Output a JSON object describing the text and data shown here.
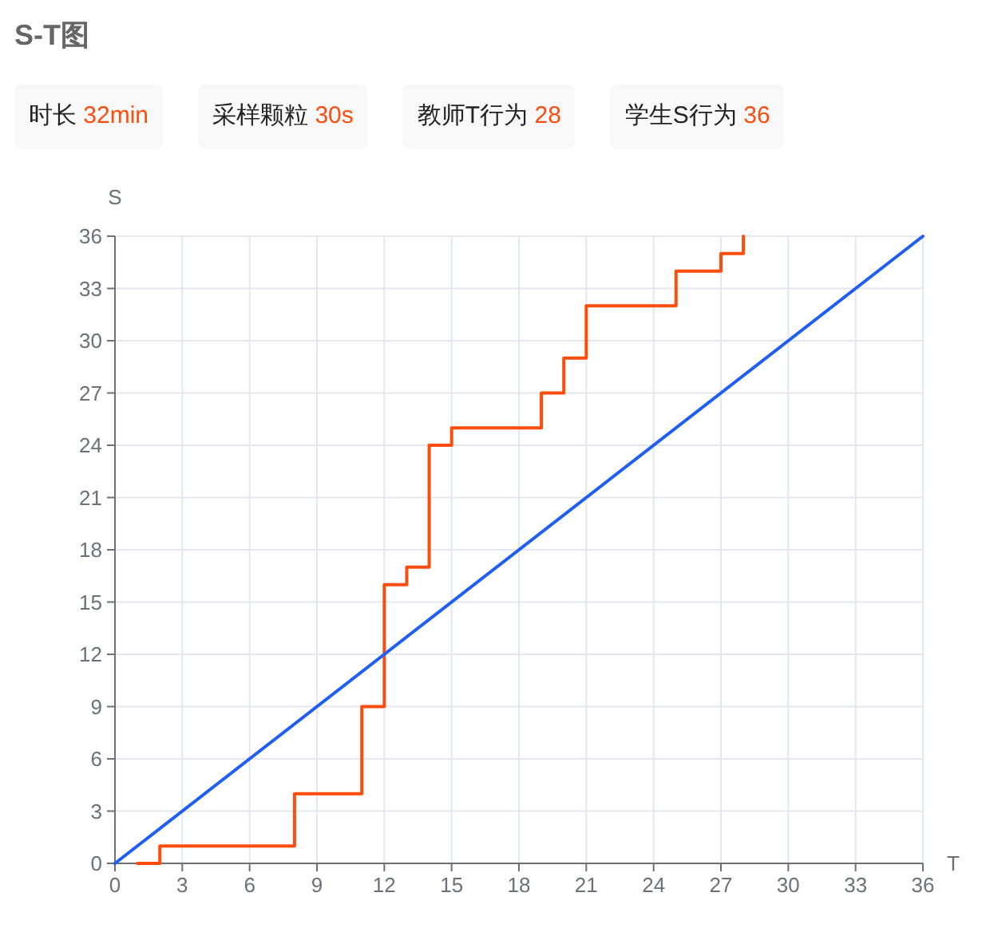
{
  "chart_data": [
    {
      "type": "other",
      "title": "S-T图",
      "annotations": [
        "时长 32min",
        "采样颗粒 30s",
        "教师T行为 28",
        "学生S行为 36"
      ]
    },
    {
      "type": "line",
      "xlabel": "T",
      "ylabel": "S",
      "xlim": [
        0,
        36
      ],
      "ylim": [
        0,
        36
      ],
      "xticks": [
        0,
        3,
        6,
        9,
        12,
        15,
        18,
        21,
        24,
        27,
        30,
        33,
        36
      ],
      "yticks": [
        0,
        3,
        6,
        9,
        12,
        15,
        18,
        21,
        24,
        27,
        30,
        33,
        36
      ],
      "grid": true,
      "marker": "none",
      "series": [
        {
          "type": "step",
          "color": "#fe4c0c",
          "x": [
            1,
            2,
            8,
            11,
            12,
            13,
            14,
            15,
            19,
            20,
            21,
            25,
            27,
            28
          ],
          "values": [
            0,
            1,
            4,
            9,
            16,
            17,
            24,
            25,
            27,
            29,
            32,
            34,
            35,
            36
          ]
        },
        {
          "type": "line",
          "color": "#1f5ef2",
          "x": [
            0,
            36
          ],
          "values": [
            0,
            36
          ]
        }
      ]
    }
  ]
}
